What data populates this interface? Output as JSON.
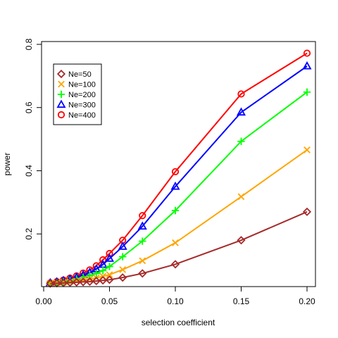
{
  "chart_data": {
    "type": "line",
    "title": "",
    "xlabel": "selection coefficient",
    "ylabel": "power",
    "xlim": [
      0.0,
      0.2
    ],
    "ylim": [
      0.04,
      0.8
    ],
    "x_ticks": [
      {
        "value": 0.0,
        "label": "0.00"
      },
      {
        "value": 0.05,
        "label": "0.05"
      },
      {
        "value": 0.1,
        "label": "0.10"
      },
      {
        "value": 0.15,
        "label": "0.15"
      },
      {
        "value": 0.2,
        "label": "0.20"
      }
    ],
    "y_ticks": [
      {
        "value": 0.2,
        "label": "0.2"
      },
      {
        "value": 0.4,
        "label": "0.4"
      },
      {
        "value": 0.6,
        "label": "0.6"
      },
      {
        "value": 0.8,
        "label": "0.8"
      }
    ],
    "grid": false,
    "legend_position": "top-left",
    "x": [
      0.005,
      0.01,
      0.015,
      0.02,
      0.025,
      0.03,
      0.035,
      0.04,
      0.045,
      0.05,
      0.06,
      0.075,
      0.1,
      0.15,
      0.2
    ],
    "series": [
      {
        "name": "Ne=50",
        "color": "#a52a2a",
        "marker": "diamond",
        "values": [
          0.043,
          0.044,
          0.045,
          0.046,
          0.047,
          0.048,
          0.049,
          0.051,
          0.053,
          0.055,
          0.062,
          0.075,
          0.104,
          0.18,
          0.27
        ]
      },
      {
        "name": "Ne=100",
        "color": "#ffa500",
        "marker": "x",
        "values": [
          0.044,
          0.045,
          0.047,
          0.049,
          0.051,
          0.054,
          0.057,
          0.061,
          0.066,
          0.071,
          0.087,
          0.115,
          0.172,
          0.318,
          0.466
        ]
      },
      {
        "name": "Ne=200",
        "color": "#00ff00",
        "marker": "plus",
        "values": [
          0.044,
          0.046,
          0.049,
          0.053,
          0.057,
          0.062,
          0.068,
          0.075,
          0.084,
          0.097,
          0.128,
          0.177,
          0.274,
          0.493,
          0.649
        ]
      },
      {
        "name": "Ne=300",
        "color": "#0000ff",
        "marker": "triangle",
        "values": [
          0.045,
          0.048,
          0.052,
          0.057,
          0.063,
          0.07,
          0.078,
          0.089,
          0.103,
          0.122,
          0.16,
          0.224,
          0.35,
          0.585,
          0.731
        ]
      },
      {
        "name": "Ne=400",
        "color": "#ff0000",
        "marker": "circle",
        "values": [
          0.045,
          0.049,
          0.054,
          0.06,
          0.067,
          0.076,
          0.086,
          0.099,
          0.118,
          0.138,
          0.18,
          0.258,
          0.397,
          0.643,
          0.772
        ]
      }
    ]
  }
}
